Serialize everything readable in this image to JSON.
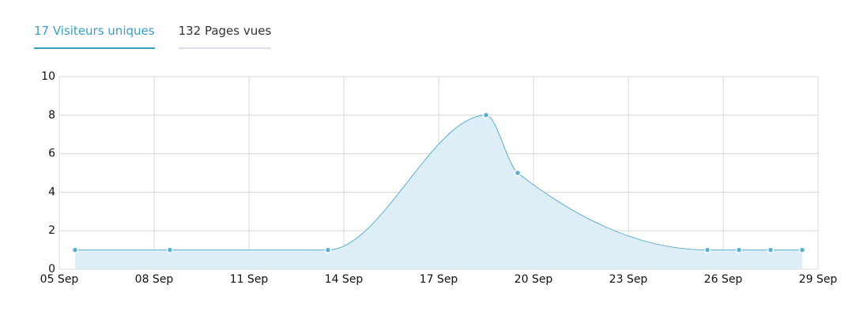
{
  "tabs": [
    {
      "label": "17 Visiteurs uniques",
      "active": true
    },
    {
      "label": "132 Pages vues",
      "active": false
    }
  ],
  "chart_data": {
    "type": "area",
    "x": [
      5.5,
      8.5,
      13.5,
      18.5,
      19.5,
      25.5,
      26.5,
      27.5,
      28.5
    ],
    "values": [
      1,
      1,
      1,
      8,
      5,
      1,
      1,
      1,
      1
    ],
    "color": "#5aafd0",
    "fill": "#deeef7",
    "xlim": [
      5,
      29
    ],
    "xticks": [
      {
        "value": 5,
        "label": "05 Sep"
      },
      {
        "value": 8,
        "label": "08 Sep"
      },
      {
        "value": 11,
        "label": "11 Sep"
      },
      {
        "value": 14,
        "label": "14 Sep"
      },
      {
        "value": 17,
        "label": "17 Sep"
      },
      {
        "value": 20,
        "label": "20 Sep"
      },
      {
        "value": 23,
        "label": "23 Sep"
      },
      {
        "value": 26,
        "label": "26 Sep"
      },
      {
        "value": 29,
        "label": "29 Sep"
      }
    ],
    "ylim": [
      0,
      10
    ],
    "yticks": [
      0,
      2,
      4,
      6,
      8,
      10
    ],
    "grid": true
  }
}
